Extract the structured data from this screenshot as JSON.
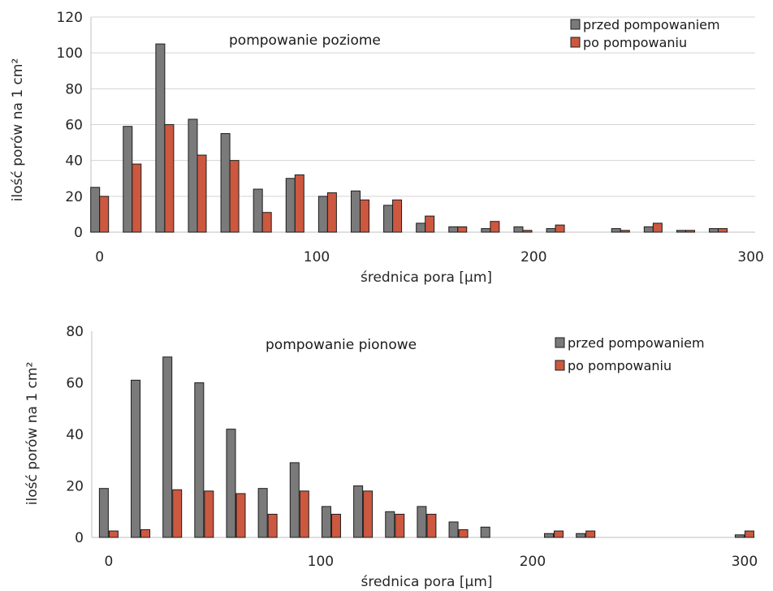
{
  "colors": {
    "before": "#7a7a7a",
    "after": "#cc5840",
    "bar_stroke": "#1c1c1c"
  },
  "chart_data": [
    {
      "type": "bar",
      "title": "pompowanie poziome",
      "xlabel": "średnica pora [µm]",
      "ylabel": "ilość porów na 1 cm²",
      "ylim": [
        0,
        120
      ],
      "yticks": [
        0,
        20,
        40,
        60,
        80,
        100,
        120
      ],
      "xlim": [
        -4,
        302
      ],
      "xticks": [
        0,
        100,
        200,
        300
      ],
      "grid": true,
      "legend": "top-right",
      "x": [
        0,
        15,
        30,
        45,
        60,
        75,
        90,
        105,
        120,
        135,
        150,
        165,
        180,
        195,
        210,
        225,
        240,
        255,
        270,
        285
      ],
      "series": [
        {
          "name": "przed pompowaniem",
          "values": [
            25,
            59,
            105,
            63,
            55,
            24,
            30,
            20,
            23,
            15,
            5,
            3,
            2,
            3,
            2,
            0,
            2,
            3,
            1,
            2
          ]
        },
        {
          "name": "po pompowaniu",
          "values": [
            20,
            38,
            60,
            43,
            40,
            11,
            32,
            22,
            18,
            18,
            9,
            3,
            6,
            1,
            4,
            0,
            1,
            5,
            1,
            2
          ]
        }
      ]
    },
    {
      "type": "bar",
      "title": "pompowanie pionowe",
      "xlabel": "średnica pora [µm]",
      "ylabel": "ilość porów na 1 cm²",
      "ylim": [
        0,
        80
      ],
      "yticks": [
        0,
        20,
        40,
        60,
        80
      ],
      "xlim": [
        -8,
        305
      ],
      "xticks": [
        0,
        100,
        200,
        300
      ],
      "grid": false,
      "legend": "top-right",
      "x": [
        0,
        15,
        30,
        45,
        60,
        75,
        90,
        105,
        120,
        135,
        150,
        165,
        180,
        195,
        210,
        225,
        240,
        255,
        270,
        285,
        300
      ],
      "series": [
        {
          "name": "przed pompowaniem",
          "values": [
            19,
            61,
            70,
            60,
            42,
            19,
            29,
            12,
            20,
            10,
            12,
            6,
            4,
            0,
            1.5,
            1.5,
            0,
            0,
            0,
            0,
            1
          ]
        },
        {
          "name": "po pompowaniu",
          "values": [
            2.5,
            3,
            18.5,
            18,
            17,
            9,
            18,
            9,
            18,
            9,
            9,
            3,
            0,
            0,
            2.5,
            2.5,
            0,
            0,
            0,
            0,
            2.5
          ]
        }
      ]
    }
  ]
}
